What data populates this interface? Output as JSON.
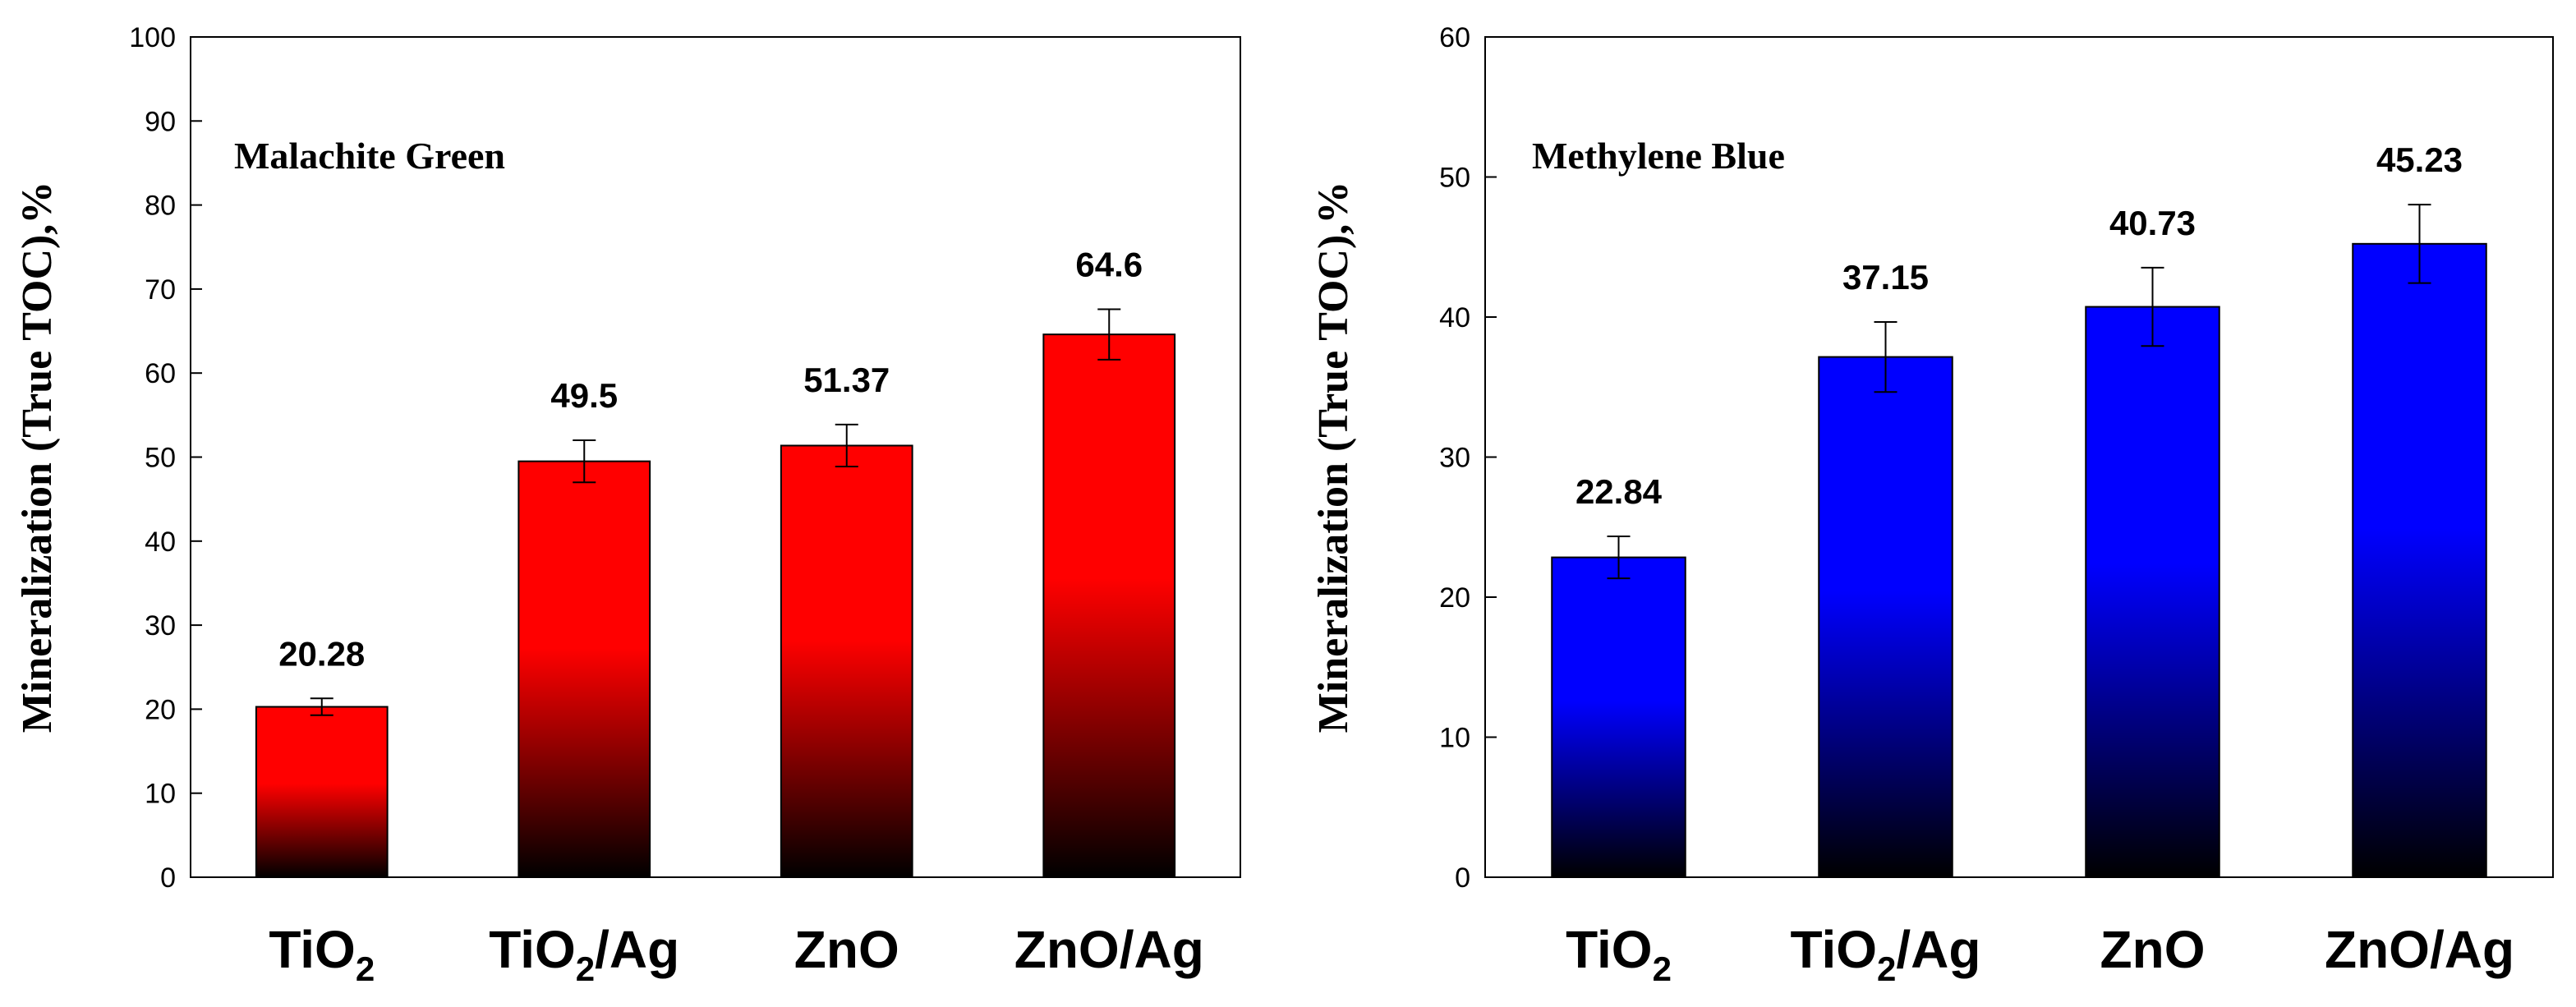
{
  "chart_data": [
    {
      "type": "bar",
      "title": "Malachite Green",
      "ylabel": "Mineralization (True TOC),%",
      "xlabel": "",
      "ylim": [
        0,
        100
      ],
      "yticks": [
        0,
        10,
        20,
        30,
        40,
        50,
        60,
        70,
        80,
        90,
        100
      ],
      "categories": [
        {
          "base": "TiO",
          "sub": "2",
          "suffix": ""
        },
        {
          "base": "TiO",
          "sub": "2",
          "suffix": "/Ag"
        },
        {
          "base": "ZnO",
          "sub": "",
          "suffix": ""
        },
        {
          "base": "ZnO/Ag",
          "sub": "",
          "suffix": ""
        }
      ],
      "values": [
        20.28,
        49.5,
        51.37,
        64.6
      ],
      "value_labels": [
        "20.28",
        "49.5",
        "51.37",
        "64.6"
      ],
      "errors": [
        1.0,
        2.5,
        2.5,
        3.0
      ],
      "color": "#ff0000",
      "color_bottom": "#000000",
      "grid": false
    },
    {
      "type": "bar",
      "title": "Methylene Blue",
      "ylabel": "Mineralization (True TOC),%",
      "xlabel": "",
      "ylim": [
        0,
        60
      ],
      "yticks": [
        0,
        10,
        20,
        30,
        40,
        50,
        60
      ],
      "categories": [
        {
          "base": "TiO",
          "sub": "2",
          "suffix": ""
        },
        {
          "base": "TiO",
          "sub": "2",
          "suffix": "/Ag"
        },
        {
          "base": "ZnO",
          "sub": "",
          "suffix": ""
        },
        {
          "base": "ZnO/Ag",
          "sub": "",
          "suffix": ""
        }
      ],
      "values": [
        22.84,
        37.15,
        40.73,
        45.23
      ],
      "value_labels": [
        "22.84",
        "37.15",
        "40.73",
        "45.23"
      ],
      "errors": [
        1.5,
        2.5,
        2.8,
        2.8
      ],
      "color": "#0000ff",
      "color_bottom": "#000000",
      "grid": false
    }
  ]
}
